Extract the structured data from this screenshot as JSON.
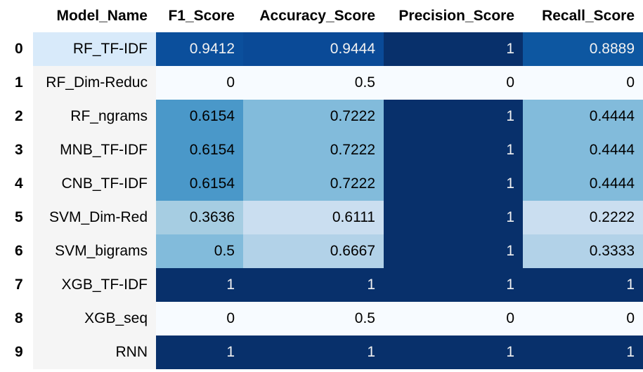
{
  "columns": [
    "",
    "Model_Name",
    "F1_Score",
    "Accuracy_Score",
    "Precision_Score",
    "Recall_Score"
  ],
  "rows": [
    {
      "index": "0",
      "Model_Name": "RF_TF-IDF",
      "F1_Score": "0.9412",
      "Accuracy_Score": "0.9444",
      "Precision_Score": "1",
      "Recall_Score": "0.8889"
    },
    {
      "index": "1",
      "Model_Name": "RF_Dim-Reduc",
      "F1_Score": "0",
      "Accuracy_Score": "0.5",
      "Precision_Score": "0",
      "Recall_Score": "0"
    },
    {
      "index": "2",
      "Model_Name": "RF_ngrams",
      "F1_Score": "0.6154",
      "Accuracy_Score": "0.7222",
      "Precision_Score": "1",
      "Recall_Score": "0.4444"
    },
    {
      "index": "3",
      "Model_Name": "MNB_TF-IDF",
      "F1_Score": "0.6154",
      "Accuracy_Score": "0.7222",
      "Precision_Score": "1",
      "Recall_Score": "0.4444"
    },
    {
      "index": "4",
      "Model_Name": "CNB_TF-IDF",
      "F1_Score": "0.6154",
      "Accuracy_Score": "0.7222",
      "Precision_Score": "1",
      "Recall_Score": "0.4444"
    },
    {
      "index": "5",
      "Model_Name": "SVM_Dim-Red",
      "F1_Score": "0.3636",
      "Accuracy_Score": "0.6111",
      "Precision_Score": "1",
      "Recall_Score": "0.2222"
    },
    {
      "index": "6",
      "Model_Name": "SVM_bigrams",
      "F1_Score": "0.5",
      "Accuracy_Score": "0.6667",
      "Precision_Score": "1",
      "Recall_Score": "0.3333"
    },
    {
      "index": "7",
      "Model_Name": "XGB_TF-IDF",
      "F1_Score": "1",
      "Accuracy_Score": "1",
      "Precision_Score": "1",
      "Recall_Score": "1"
    },
    {
      "index": "8",
      "Model_Name": "XGB_seq",
      "F1_Score": "0",
      "Accuracy_Score": "0.5",
      "Precision_Score": "0",
      "Recall_Score": "0"
    },
    {
      "index": "9",
      "Model_Name": "RNN",
      "F1_Score": "1",
      "Accuracy_Score": "1",
      "Precision_Score": "1",
      "Recall_Score": "1"
    }
  ],
  "cell_colors": {
    "bg": [
      [
        "#0b4f9c",
        "#0a4a97",
        "#08306b",
        "#0d57a1"
      ],
      [
        "#f7fbff",
        "#f7fbff",
        "#f7fbff",
        "#f7fbff"
      ],
      [
        "#4a98c9",
        "#82bbdb",
        "#08306b",
        "#82bbdb"
      ],
      [
        "#4a98c9",
        "#82bbdb",
        "#08306b",
        "#82bbdb"
      ],
      [
        "#4a98c9",
        "#82bbdb",
        "#08306b",
        "#82bbdb"
      ],
      [
        "#a6cde2",
        "#cadef0",
        "#08306b",
        "#cadef0"
      ],
      [
        "#82bbdb",
        "#b2d2e8",
        "#08306b",
        "#b2d2e8"
      ],
      [
        "#08306b",
        "#08306b",
        "#08306b",
        "#08306b"
      ],
      [
        "#f7fbff",
        "#f7fbff",
        "#f7fbff",
        "#f7fbff"
      ],
      [
        "#08306b",
        "#08306b",
        "#08306b",
        "#08306b"
      ]
    ],
    "fg": [
      [
        "#f1f1f1",
        "#f1f1f1",
        "#f1f1f1",
        "#f1f1f1"
      ],
      [
        "#000000",
        "#000000",
        "#000000",
        "#000000"
      ],
      [
        "#000000",
        "#000000",
        "#f1f1f1",
        "#000000"
      ],
      [
        "#000000",
        "#000000",
        "#f1f1f1",
        "#000000"
      ],
      [
        "#000000",
        "#000000",
        "#f1f1f1",
        "#000000"
      ],
      [
        "#000000",
        "#000000",
        "#f1f1f1",
        "#000000"
      ],
      [
        "#000000",
        "#000000",
        "#f1f1f1",
        "#000000"
      ],
      [
        "#f1f1f1",
        "#f1f1f1",
        "#f1f1f1",
        "#f1f1f1"
      ],
      [
        "#000000",
        "#000000",
        "#000000",
        "#000000"
      ],
      [
        "#f1f1f1",
        "#f1f1f1",
        "#f1f1f1",
        "#f1f1f1"
      ]
    ],
    "highlight_row": 0
  }
}
